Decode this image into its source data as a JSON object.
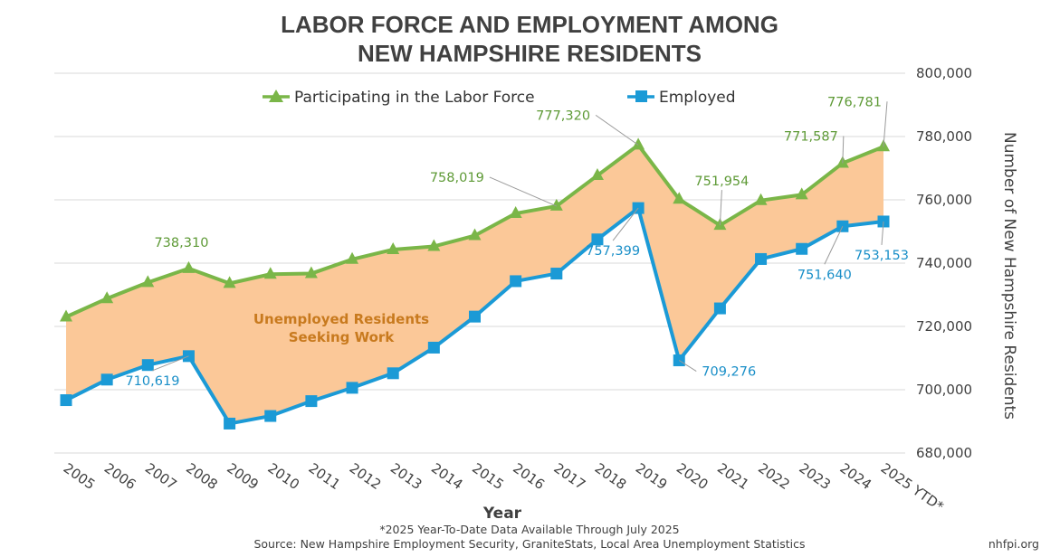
{
  "chart_data": {
    "type": "line",
    "title_lines": [
      "LABOR FORCE AND EMPLOYMENT AMONG",
      "NEW HAMPSHIRE RESIDENTS"
    ],
    "xlabel": "Year",
    "ylabel": "Number of New Hampshire Residents",
    "ylim": [
      680000,
      800000
    ],
    "yticks": [
      680000,
      700000,
      720000,
      740000,
      760000,
      780000,
      800000
    ],
    "ytick_labels": [
      "680,000",
      "700,000",
      "720,000",
      "740,000",
      "760,000",
      "780,000",
      "800,000"
    ],
    "categories": [
      "2005",
      "2006",
      "2007",
      "2008",
      "2009",
      "2010",
      "2011",
      "2012",
      "2013",
      "2014",
      "2015",
      "2016",
      "2017",
      "2018",
      "2019",
      "2020",
      "2021",
      "2022",
      "2023",
      "2024",
      "2025 YTD*"
    ],
    "grid": true,
    "legend_position": "top",
    "series": [
      {
        "name": "Participating in the Labor Force",
        "color": "#7ab648",
        "marker": "triangle",
        "values": [
          723000,
          728800,
          733900,
          738310,
          733600,
          736500,
          736700,
          741200,
          744300,
          745300,
          748700,
          755700,
          758019,
          767700,
          777320,
          760200,
          751954,
          759800,
          761600,
          771587,
          776781
        ]
      },
      {
        "name": "Employed",
        "color": "#1b9ad6",
        "marker": "square",
        "values": [
          696700,
          703200,
          707800,
          710619,
          689300,
          691700,
          696400,
          700600,
          705200,
          713300,
          723100,
          734300,
          736700,
          747500,
          757399,
          709276,
          725700,
          741300,
          744500,
          751640,
          753153
        ]
      }
    ],
    "annotations": [
      {
        "series": 0,
        "index": 3,
        "text": "738,310"
      },
      {
        "series": 0,
        "index": 12,
        "text": "758,019"
      },
      {
        "series": 0,
        "index": 14,
        "text": "777,320"
      },
      {
        "series": 0,
        "index": 16,
        "text": "751,954"
      },
      {
        "series": 0,
        "index": 19,
        "text": "771,587"
      },
      {
        "series": 0,
        "index": 20,
        "text": "776,781"
      },
      {
        "series": 1,
        "index": 3,
        "text": "710,619"
      },
      {
        "series": 1,
        "index": 14,
        "text": "757,399"
      },
      {
        "series": 1,
        "index": 15,
        "text": "709,276"
      },
      {
        "series": 1,
        "index": 19,
        "text": "751,640"
      },
      {
        "series": 1,
        "index": 20,
        "text": "753,153"
      }
    ],
    "shaded_area": {
      "label_lines": [
        "Unemployed Residents",
        "Seeking Work"
      ],
      "color": "#fbc898"
    },
    "footnote": "*2025 Year-To-Date Data Available Through July 2025",
    "source": "Source: New Hampshire Employment Security, GraniteStats, Local Area Unemployment Statistics",
    "credit": "nhfpi.org"
  }
}
